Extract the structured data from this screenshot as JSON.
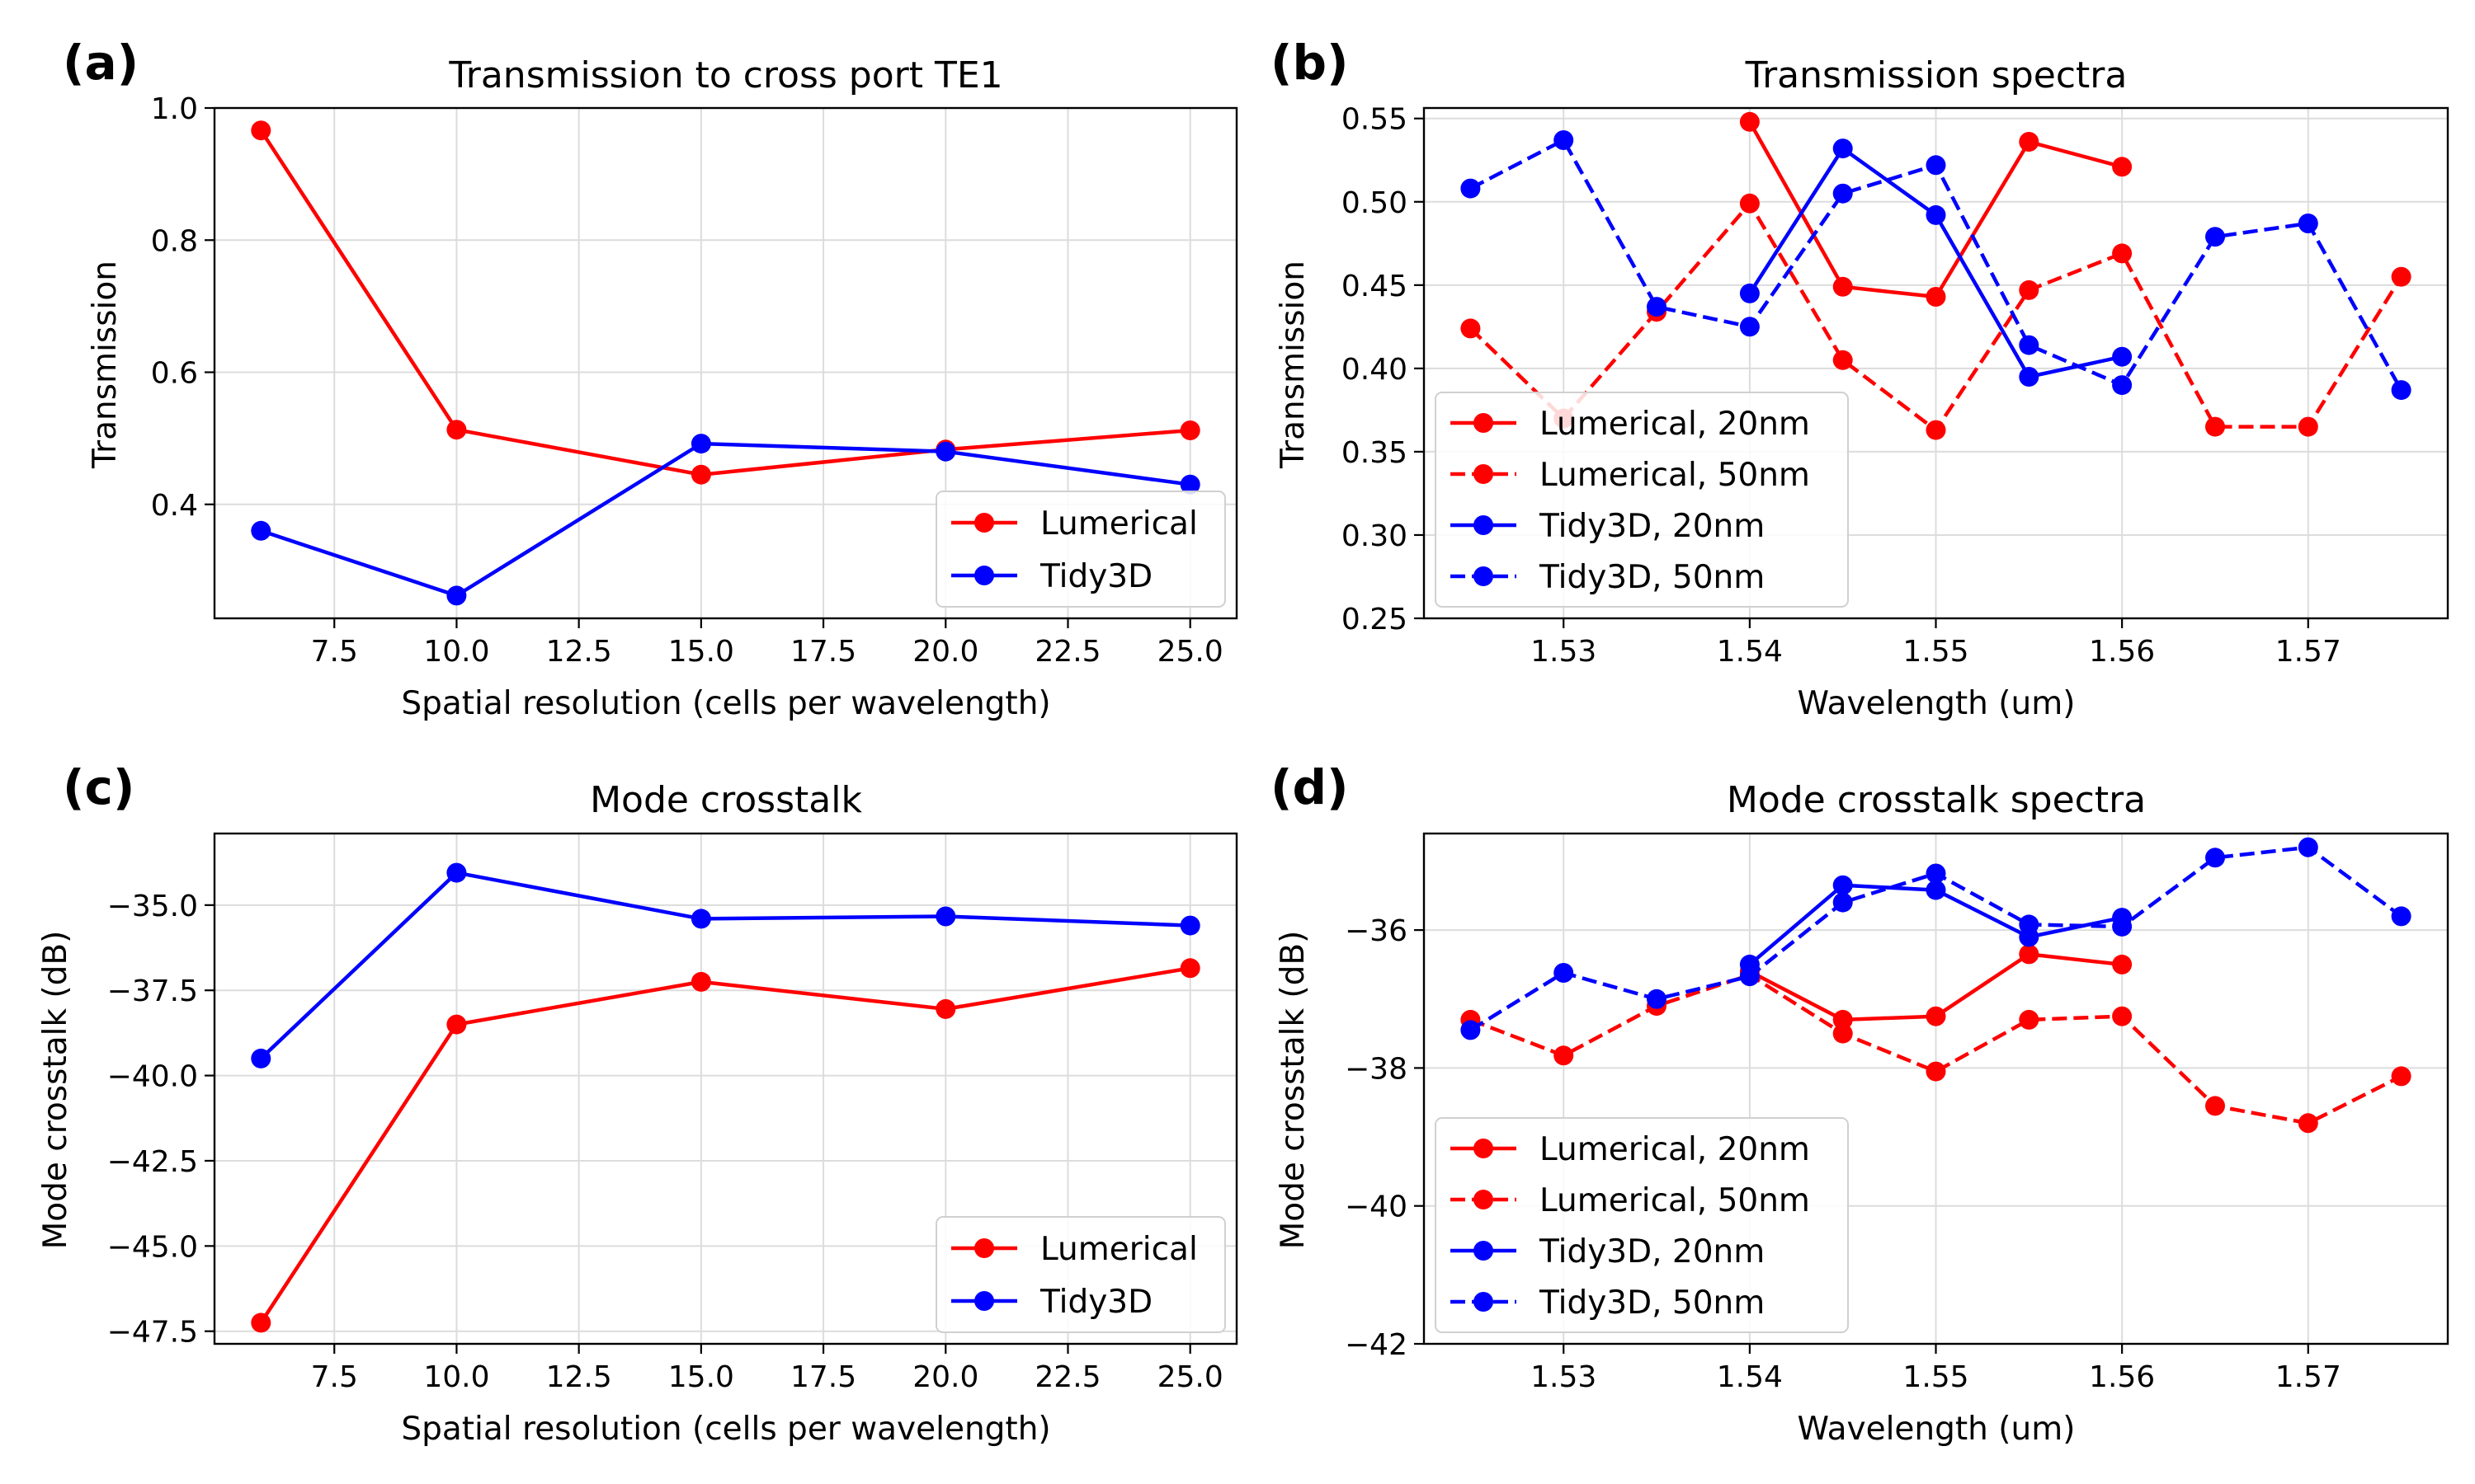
{
  "colors": {
    "lumerical": "#ff0000",
    "tidy3d": "#0000ff",
    "grid": "#dcdcdc"
  },
  "chart_data": [
    {
      "id": "a",
      "panel_label": "(a)",
      "type": "line",
      "title": "Transmission to cross port TE1",
      "xlabel": "Spatial resolution (cells per wavelength)",
      "ylabel": "Transmission",
      "xlim": [
        5.05,
        25.95
      ],
      "ylim": [
        0.2275,
        1.0
      ],
      "xticks": [
        7.5,
        10.0,
        12.5,
        15.0,
        17.5,
        20.0,
        22.5,
        25.0
      ],
      "xtick_labels": [
        "7.5",
        "10.0",
        "12.5",
        "15.0",
        "17.5",
        "20.0",
        "22.5",
        "25.0"
      ],
      "yticks": [
        0.4,
        0.6,
        0.8,
        1.0
      ],
      "ytick_labels": [
        "0.4",
        "0.6",
        "0.8",
        "1.0"
      ],
      "legend_position": "lower-right",
      "series": [
        {
          "name": "Lumerical",
          "color": "#ff0000",
          "dashed": false,
          "x": [
            6,
            10,
            15,
            20,
            25
          ],
          "y": [
            0.966,
            0.513,
            0.445,
            0.483,
            0.512
          ]
        },
        {
          "name": "Tidy3D",
          "color": "#0000ff",
          "dashed": false,
          "x": [
            6,
            10,
            15,
            20,
            25
          ],
          "y": [
            0.36,
            0.262,
            0.492,
            0.48,
            0.43
          ]
        }
      ]
    },
    {
      "id": "b",
      "panel_label": "(b)",
      "type": "line",
      "title": "Transmission spectra",
      "xlabel": "Wavelength (um)",
      "ylabel": "Transmission",
      "xlim": [
        1.5225,
        1.5775
      ],
      "ylim": [
        0.25,
        0.5563
      ],
      "xticks": [
        1.53,
        1.54,
        1.55,
        1.56,
        1.57
      ],
      "xtick_labels": [
        "1.53",
        "1.54",
        "1.55",
        "1.56",
        "1.57"
      ],
      "yticks": [
        0.25,
        0.3,
        0.35,
        0.4,
        0.45,
        0.5,
        0.55
      ],
      "ytick_labels": [
        "0.25",
        "0.30",
        "0.35",
        "0.40",
        "0.45",
        "0.50",
        "0.55"
      ],
      "legend_position": "lower-left",
      "series": [
        {
          "name": "Lumerical, 20nm",
          "color": "#ff0000",
          "dashed": false,
          "x": [
            1.54,
            1.545,
            1.55,
            1.555,
            1.56
          ],
          "y": [
            0.548,
            0.449,
            0.443,
            0.536,
            0.521
          ]
        },
        {
          "name": "Lumerical, 50nm",
          "color": "#ff0000",
          "dashed": true,
          "x": [
            1.525,
            1.53,
            1.535,
            1.54,
            1.545,
            1.55,
            1.555,
            1.56,
            1.565,
            1.57,
            1.575
          ],
          "y": [
            0.424,
            0.37,
            0.434,
            0.499,
            0.405,
            0.363,
            0.447,
            0.469,
            0.365,
            0.365,
            0.455
          ]
        },
        {
          "name": "Tidy3D, 20nm",
          "color": "#0000ff",
          "dashed": false,
          "x": [
            1.54,
            1.545,
            1.55,
            1.555,
            1.56
          ],
          "y": [
            0.445,
            0.532,
            0.492,
            0.395,
            0.407
          ]
        },
        {
          "name": "Tidy3D, 50nm",
          "color": "#0000ff",
          "dashed": true,
          "x": [
            1.525,
            1.53,
            1.535,
            1.54,
            1.545,
            1.55,
            1.555,
            1.56,
            1.565,
            1.57,
            1.575
          ],
          "y": [
            0.508,
            0.537,
            0.437,
            0.425,
            0.505,
            0.522,
            0.414,
            0.39,
            0.479,
            0.487,
            0.387
          ]
        }
      ]
    },
    {
      "id": "c",
      "panel_label": "(c)",
      "type": "line",
      "title": "Mode crosstalk",
      "xlabel": "Spatial resolution (cells per wavelength)",
      "ylabel": "Mode crosstalk (dB)",
      "xlim": [
        5.05,
        25.95
      ],
      "ylim": [
        -47.87,
        -32.9
      ],
      "xticks": [
        7.5,
        10.0,
        12.5,
        15.0,
        17.5,
        20.0,
        22.5,
        25.0
      ],
      "xtick_labels": [
        "7.5",
        "10.0",
        "12.5",
        "15.0",
        "17.5",
        "20.0",
        "22.5",
        "25.0"
      ],
      "yticks": [
        -47.5,
        -45.0,
        -42.5,
        -40.0,
        -37.5,
        -35.0
      ],
      "ytick_labels": [
        "−47.5",
        "−45.0",
        "−42.5",
        "−40.0",
        "−37.5",
        "−35.0"
      ],
      "legend_position": "lower-right",
      "series": [
        {
          "name": "Lumerical",
          "color": "#ff0000",
          "dashed": false,
          "x": [
            6,
            10,
            15,
            20,
            25
          ],
          "y": [
            -47.25,
            -38.5,
            -37.25,
            -38.05,
            -36.85
          ]
        },
        {
          "name": "Tidy3D",
          "color": "#0000ff",
          "dashed": false,
          "x": [
            6,
            10,
            15,
            20,
            25
          ],
          "y": [
            -39.5,
            -34.05,
            -35.4,
            -35.33,
            -35.6
          ]
        }
      ]
    },
    {
      "id": "d",
      "panel_label": "(d)",
      "type": "line",
      "title": "Mode crosstalk spectra",
      "xlabel": "Wavelength (um)",
      "ylabel": "Mode crosstalk (dB)",
      "xlim": [
        1.5225,
        1.5775
      ],
      "ylim": [
        -42.0,
        -34.6
      ],
      "xticks": [
        1.53,
        1.54,
        1.55,
        1.56,
        1.57
      ],
      "xtick_labels": [
        "1.53",
        "1.54",
        "1.55",
        "1.56",
        "1.57"
      ],
      "yticks": [
        -42,
        -40,
        -38,
        -36
      ],
      "ytick_labels": [
        "−42",
        "−40",
        "−38",
        "−36"
      ],
      "legend_position": "lower-left",
      "series": [
        {
          "name": "Lumerical, 20nm",
          "color": "#ff0000",
          "dashed": false,
          "x": [
            1.54,
            1.545,
            1.55,
            1.555,
            1.56
          ],
          "y": [
            -36.6,
            -37.3,
            -37.25,
            -36.35,
            -36.5
          ]
        },
        {
          "name": "Lumerical, 50nm",
          "color": "#ff0000",
          "dashed": true,
          "x": [
            1.525,
            1.53,
            1.535,
            1.54,
            1.545,
            1.55,
            1.555,
            1.56,
            1.565,
            1.57,
            1.575
          ],
          "y": [
            -37.3,
            -37.82,
            -37.1,
            -36.65,
            -37.5,
            -38.05,
            -37.3,
            -37.25,
            -38.55,
            -38.8,
            -38.12
          ]
        },
        {
          "name": "Tidy3D, 20nm",
          "color": "#0000ff",
          "dashed": false,
          "x": [
            1.54,
            1.545,
            1.55,
            1.555,
            1.56
          ],
          "y": [
            -36.5,
            -35.35,
            -35.42,
            -36.1,
            -35.82
          ]
        },
        {
          "name": "Tidy3D, 50nm",
          "color": "#0000ff",
          "dashed": true,
          "x": [
            1.525,
            1.53,
            1.535,
            1.54,
            1.545,
            1.55,
            1.555,
            1.56,
            1.565,
            1.57,
            1.575
          ],
          "y": [
            -37.45,
            -36.62,
            -37.0,
            -36.67,
            -35.6,
            -35.18,
            -35.92,
            -35.95,
            -34.95,
            -34.8,
            -35.8
          ]
        }
      ]
    }
  ]
}
